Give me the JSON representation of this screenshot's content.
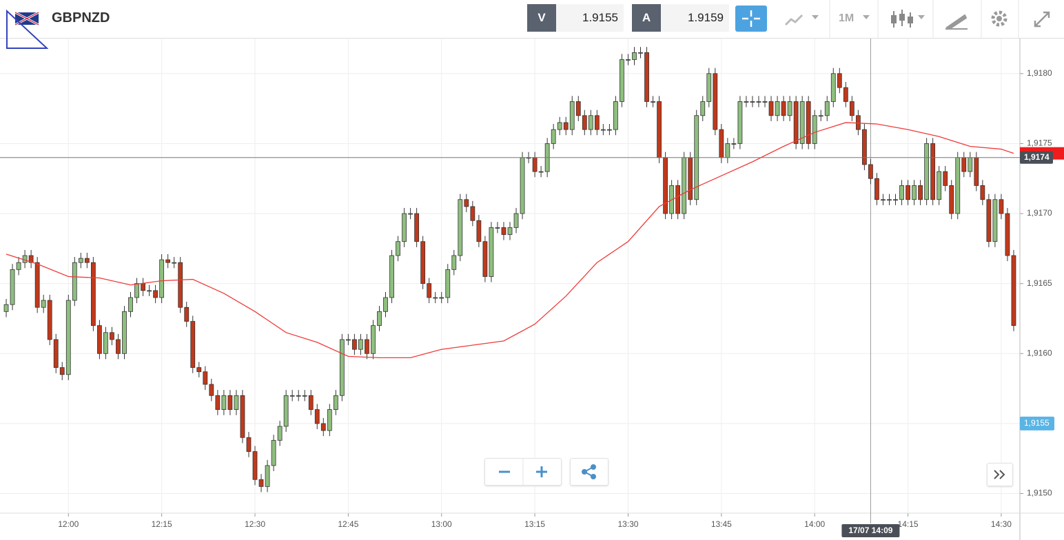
{
  "header": {
    "symbol": "GBPNZD",
    "sell_label": "V",
    "sell": 1.9155,
    "buy_label": "A",
    "buy": 1.9159,
    "timeframe": "1M"
  },
  "chart_data": {
    "type": "candlestick",
    "x": [
      "11:50",
      "11:51",
      "11:52",
      "11:53",
      "11:54",
      "11:55",
      "11:56",
      "11:57",
      "11:58",
      "11:59",
      "12:00",
      "12:01",
      "12:02",
      "12:03",
      "12:04",
      "12:05",
      "12:06",
      "12:07",
      "12:08",
      "12:09",
      "12:10",
      "12:11",
      "12:12",
      "12:13",
      "12:14",
      "12:15",
      "12:16",
      "12:17",
      "12:18",
      "12:19",
      "12:20",
      "12:21",
      "12:22",
      "12:23",
      "12:24",
      "12:25",
      "12:26",
      "12:27",
      "12:28",
      "12:29",
      "12:30",
      "12:31",
      "12:32",
      "12:33",
      "12:34",
      "12:35",
      "12:36",
      "12:37",
      "12:38",
      "12:39",
      "12:40",
      "12:41",
      "12:42",
      "12:43",
      "12:44",
      "12:45",
      "12:46",
      "12:47",
      "12:48",
      "12:49",
      "12:50",
      "12:51",
      "12:52",
      "12:53",
      "12:54",
      "12:55",
      "12:56",
      "12:57",
      "12:58",
      "12:59",
      "13:00",
      "13:01",
      "13:02",
      "13:03",
      "13:04",
      "13:05",
      "13:06",
      "13:07",
      "13:08",
      "13:09",
      "13:10",
      "13:11",
      "13:12",
      "13:13",
      "13:14",
      "13:15",
      "13:16",
      "13:17",
      "13:18",
      "13:19",
      "13:20",
      "13:21",
      "13:22",
      "13:23",
      "13:24",
      "13:25",
      "13:26",
      "13:27",
      "13:28",
      "13:29",
      "13:30",
      "13:31",
      "13:32",
      "13:33",
      "13:34",
      "13:35",
      "13:36",
      "13:37",
      "13:38",
      "13:39",
      "13:40",
      "13:41",
      "13:42",
      "13:43",
      "13:44",
      "13:45",
      "13:46",
      "13:47",
      "13:48",
      "13:49",
      "13:50",
      "13:51",
      "13:52",
      "13:53",
      "13:54",
      "13:55",
      "13:56",
      "13:57",
      "13:58",
      "13:59",
      "14:00",
      "14:01",
      "14:02",
      "14:03",
      "14:04",
      "14:05",
      "14:06",
      "14:07",
      "14:08",
      "14:09",
      "14:10",
      "14:11",
      "14:12",
      "14:13",
      "14:14",
      "14:15",
      "14:16",
      "14:17",
      "14:18",
      "14:19",
      "14:20",
      "14:21",
      "14:22",
      "14:23",
      "14:24",
      "14:25",
      "14:26",
      "14:27",
      "14:28",
      "14:29",
      "14:30",
      "14:31",
      "14:32"
    ],
    "ohlc": [
      [
        1.9163,
        1.91639,
        1.91626,
        1.91635
      ],
      [
        1.91635,
        1.91664,
        1.91631,
        1.9166
      ],
      [
        1.9166,
        1.91669,
        1.91656,
        1.91665
      ],
      [
        1.91665,
        1.91674,
        1.91661,
        1.9167
      ],
      [
        1.9167,
        1.91674,
        1.91661,
        1.91665
      ],
      [
        1.91665,
        1.91669,
        1.91629,
        1.91633
      ],
      [
        1.91633,
        1.91642,
        1.91629,
        1.91638
      ],
      [
        1.91638,
        1.91642,
        1.91606,
        1.9161
      ],
      [
        1.9161,
        1.91614,
        1.91586,
        1.9159
      ],
      [
        1.9159,
        1.91594,
        1.91581,
        1.91585
      ],
      [
        1.91585,
        1.91642,
        1.91581,
        1.91638
      ],
      [
        1.91638,
        1.91669,
        1.91634,
        1.91665
      ],
      [
        1.91665,
        1.91672,
        1.91661,
        1.91668
      ],
      [
        1.91668,
        1.91672,
        1.91661,
        1.91665
      ],
      [
        1.91665,
        1.91669,
        1.91616,
        1.9162
      ],
      [
        1.9162,
        1.91624,
        1.91596,
        1.916
      ],
      [
        1.916,
        1.91619,
        1.91596,
        1.91615
      ],
      [
        1.91615,
        1.91619,
        1.91606,
        1.9161
      ],
      [
        1.9161,
        1.91614,
        1.91596,
        1.916
      ],
      [
        1.916,
        1.91634,
        1.91596,
        1.9163
      ],
      [
        1.9163,
        1.91644,
        1.91626,
        1.9164
      ],
      [
        1.9164,
        1.91654,
        1.91636,
        1.9165
      ],
      [
        1.9165,
        1.91654,
        1.91641,
        1.91645
      ],
      [
        1.91645,
        1.91649,
        1.91641,
        1.91645
      ],
      [
        1.91645,
        1.91649,
        1.91636,
        1.9164
      ],
      [
        1.9164,
        1.91671,
        1.91636,
        1.91667
      ],
      [
        1.91667,
        1.91671,
        1.91661,
        1.91665
      ],
      [
        1.91665,
        1.91669,
        1.91661,
        1.91665
      ],
      [
        1.91665,
        1.91669,
        1.91629,
        1.91633
      ],
      [
        1.91633,
        1.91637,
        1.91619,
        1.91623
      ],
      [
        1.91623,
        1.91627,
        1.91586,
        1.9159
      ],
      [
        1.9159,
        1.91594,
        1.91583,
        1.91587
      ],
      [
        1.91587,
        1.91591,
        1.91574,
        1.91578
      ],
      [
        1.91578,
        1.91582,
        1.91566,
        1.9157
      ],
      [
        1.9157,
        1.91574,
        1.91556,
        1.9156
      ],
      [
        1.9156,
        1.91574,
        1.91556,
        1.9157
      ],
      [
        1.9157,
        1.91574,
        1.91556,
        1.9156
      ],
      [
        1.9156,
        1.91574,
        1.91556,
        1.9157
      ],
      [
        1.9157,
        1.91574,
        1.91536,
        1.9154
      ],
      [
        1.9154,
        1.91544,
        1.91526,
        1.9153
      ],
      [
        1.9153,
        1.91534,
        1.91506,
        1.9151
      ],
      [
        1.9151,
        1.91514,
        1.91501,
        1.91505
      ],
      [
        1.91505,
        1.91524,
        1.91501,
        1.9152
      ],
      [
        1.9152,
        1.91542,
        1.91516,
        1.91538
      ],
      [
        1.91538,
        1.91552,
        1.91534,
        1.91548
      ],
      [
        1.91548,
        1.91574,
        1.91544,
        1.9157
      ],
      [
        1.9157,
        1.91574,
        1.91566,
        1.9157
      ],
      [
        1.9157,
        1.91574,
        1.91566,
        1.9157
      ],
      [
        1.9157,
        1.91574,
        1.91566,
        1.9157
      ],
      [
        1.9157,
        1.91574,
        1.91556,
        1.9156
      ],
      [
        1.9156,
        1.91564,
        1.91546,
        1.9155
      ],
      [
        1.9155,
        1.91554,
        1.91541,
        1.91545
      ],
      [
        1.91545,
        1.91564,
        1.91541,
        1.9156
      ],
      [
        1.9156,
        1.91574,
        1.91556,
        1.9157
      ],
      [
        1.9157,
        1.91614,
        1.91566,
        1.9161
      ],
      [
        1.9161,
        1.91614,
        1.91606,
        1.9161
      ],
      [
        1.9161,
        1.91614,
        1.91599,
        1.91603
      ],
      [
        1.91603,
        1.91614,
        1.91599,
        1.9161
      ],
      [
        1.9161,
        1.91614,
        1.91596,
        1.916
      ],
      [
        1.916,
        1.91624,
        1.91596,
        1.9162
      ],
      [
        1.9162,
        1.91634,
        1.91616,
        1.9163
      ],
      [
        1.9163,
        1.91644,
        1.91626,
        1.9164
      ],
      [
        1.9164,
        1.91674,
        1.91636,
        1.9167
      ],
      [
        1.9167,
        1.91684,
        1.91666,
        1.9168
      ],
      [
        1.9168,
        1.91704,
        1.91676,
        1.917
      ],
      [
        1.917,
        1.91704,
        1.91696,
        1.917
      ],
      [
        1.917,
        1.91704,
        1.91676,
        1.9168
      ],
      [
        1.9168,
        1.91684,
        1.91646,
        1.9165
      ],
      [
        1.9165,
        1.91654,
        1.91636,
        1.9164
      ],
      [
        1.9164,
        1.91644,
        1.91636,
        1.9164
      ],
      [
        1.9164,
        1.91644,
        1.91636,
        1.9164
      ],
      [
        1.9164,
        1.91664,
        1.91636,
        1.9166
      ],
      [
        1.9166,
        1.91674,
        1.91656,
        1.9167
      ],
      [
        1.9167,
        1.91714,
        1.91666,
        1.9171
      ],
      [
        1.9171,
        1.91714,
        1.91701,
        1.91705
      ],
      [
        1.91705,
        1.91709,
        1.91691,
        1.91695
      ],
      [
        1.91695,
        1.91699,
        1.91676,
        1.9168
      ],
      [
        1.9168,
        1.91684,
        1.91651,
        1.91655
      ],
      [
        1.91655,
        1.91694,
        1.91651,
        1.9169
      ],
      [
        1.9169,
        1.91694,
        1.91686,
        1.9169
      ],
      [
        1.9169,
        1.91694,
        1.91681,
        1.91685
      ],
      [
        1.91685,
        1.91694,
        1.91681,
        1.9169
      ],
      [
        1.9169,
        1.91704,
        1.91686,
        1.917
      ],
      [
        1.917,
        1.91744,
        1.91696,
        1.9174
      ],
      [
        1.9174,
        1.91744,
        1.91736,
        1.9174
      ],
      [
        1.9174,
        1.91744,
        1.91726,
        1.9173
      ],
      [
        1.9173,
        1.91734,
        1.91726,
        1.9173
      ],
      [
        1.9173,
        1.91754,
        1.91726,
        1.9175
      ],
      [
        1.9175,
        1.91764,
        1.91746,
        1.9176
      ],
      [
        1.9176,
        1.91769,
        1.91756,
        1.91765
      ],
      [
        1.91765,
        1.91769,
        1.91756,
        1.9176
      ],
      [
        1.9176,
        1.91784,
        1.91756,
        1.9178
      ],
      [
        1.9178,
        1.91784,
        1.91766,
        1.9177
      ],
      [
        1.9177,
        1.91774,
        1.91756,
        1.9176
      ],
      [
        1.9176,
        1.91774,
        1.91756,
        1.9177
      ],
      [
        1.9177,
        1.91774,
        1.91756,
        1.9176
      ],
      [
        1.9176,
        1.91764,
        1.91756,
        1.9176
      ],
      [
        1.9176,
        1.91764,
        1.91756,
        1.9176
      ],
      [
        1.9176,
        1.91784,
        1.91756,
        1.9178
      ],
      [
        1.9178,
        1.91814,
        1.91776,
        1.9181
      ],
      [
        1.9181,
        1.91814,
        1.91806,
        1.9181
      ],
      [
        1.9181,
        1.91819,
        1.91806,
        1.91815
      ],
      [
        1.91815,
        1.91819,
        1.91811,
        1.91815
      ],
      [
        1.91815,
        1.91819,
        1.91776,
        1.9178
      ],
      [
        1.9178,
        1.91784,
        1.91776,
        1.9178
      ],
      [
        1.9178,
        1.91784,
        1.91736,
        1.9174
      ],
      [
        1.9174,
        1.91744,
        1.91696,
        1.917
      ],
      [
        1.917,
        1.91724,
        1.91696,
        1.9172
      ],
      [
        1.9172,
        1.91724,
        1.91696,
        1.917
      ],
      [
        1.917,
        1.91744,
        1.91696,
        1.9174
      ],
      [
        1.9174,
        1.91744,
        1.91706,
        1.9171
      ],
      [
        1.9171,
        1.91774,
        1.91706,
        1.9177
      ],
      [
        1.9177,
        1.91784,
        1.91766,
        1.9178
      ],
      [
        1.9178,
        1.91804,
        1.91776,
        1.918
      ],
      [
        1.918,
        1.91804,
        1.91756,
        1.9176
      ],
      [
        1.9176,
        1.91764,
        1.91736,
        1.9174
      ],
      [
        1.9174,
        1.91754,
        1.91736,
        1.9175
      ],
      [
        1.9175,
        1.91754,
        1.91746,
        1.9175
      ],
      [
        1.9175,
        1.91784,
        1.91746,
        1.9178
      ],
      [
        1.9178,
        1.91784,
        1.91776,
        1.9178
      ],
      [
        1.9178,
        1.91784,
        1.91776,
        1.9178
      ],
      [
        1.9178,
        1.91784,
        1.91776,
        1.9178
      ],
      [
        1.9178,
        1.91784,
        1.91776,
        1.9178
      ],
      [
        1.9178,
        1.91784,
        1.91766,
        1.9177
      ],
      [
        1.9177,
        1.91784,
        1.91766,
        1.9178
      ],
      [
        1.9178,
        1.91784,
        1.91766,
        1.9177
      ],
      [
        1.9177,
        1.91784,
        1.91766,
        1.9178
      ],
      [
        1.9178,
        1.91784,
        1.91746,
        1.9175
      ],
      [
        1.9175,
        1.91784,
        1.91746,
        1.9178
      ],
      [
        1.9178,
        1.91784,
        1.91746,
        1.9175
      ],
      [
        1.9175,
        1.91774,
        1.91746,
        1.9177
      ],
      [
        1.9177,
        1.91774,
        1.91766,
        1.9177
      ],
      [
        1.9177,
        1.91784,
        1.91766,
        1.9178
      ],
      [
        1.9178,
        1.91804,
        1.91776,
        1.918
      ],
      [
        1.918,
        1.91804,
        1.91786,
        1.9179
      ],
      [
        1.9179,
        1.91794,
        1.91776,
        1.9178
      ],
      [
        1.9178,
        1.91784,
        1.91766,
        1.9177
      ],
      [
        1.9177,
        1.91774,
        1.91756,
        1.9176
      ],
      [
        1.9176,
        1.91764,
        1.91731,
        1.91735
      ],
      [
        1.91735,
        1.91739,
        1.91721,
        1.91725
      ],
      [
        1.91725,
        1.91729,
        1.91706,
        1.9171
      ],
      [
        1.9171,
        1.91714,
        1.91706,
        1.9171
      ],
      [
        1.9171,
        1.91714,
        1.91706,
        1.9171
      ],
      [
        1.9171,
        1.91714,
        1.91706,
        1.9171
      ],
      [
        1.9171,
        1.91724,
        1.91706,
        1.9172
      ],
      [
        1.9172,
        1.91724,
        1.91706,
        1.9171
      ],
      [
        1.9171,
        1.91724,
        1.91706,
        1.9172
      ],
      [
        1.9172,
        1.91724,
        1.91706,
        1.9171
      ],
      [
        1.9171,
        1.91754,
        1.91706,
        1.9175
      ],
      [
        1.9175,
        1.91754,
        1.91706,
        1.9171
      ],
      [
        1.9171,
        1.91734,
        1.91706,
        1.9173
      ],
      [
        1.9173,
        1.91734,
        1.91716,
        1.9172
      ],
      [
        1.9172,
        1.91724,
        1.91696,
        1.917
      ],
      [
        1.917,
        1.91744,
        1.91696,
        1.9174
      ],
      [
        1.9174,
        1.91744,
        1.91726,
        1.9173
      ],
      [
        1.9173,
        1.91744,
        1.91726,
        1.9174
      ],
      [
        1.9174,
        1.91744,
        1.91716,
        1.9172
      ],
      [
        1.9172,
        1.91724,
        1.91706,
        1.9171
      ],
      [
        1.9171,
        1.91714,
        1.91676,
        1.9168
      ],
      [
        1.9168,
        1.91714,
        1.91676,
        1.9171
      ],
      [
        1.9171,
        1.91714,
        1.91696,
        1.917
      ],
      [
        1.917,
        1.91704,
        1.91666,
        1.9167
      ],
      [
        1.9167,
        1.91674,
        1.91616,
        1.9162
      ]
    ],
    "up_color": "#8fbf7f",
    "down_color": "#c0391b",
    "ma": {
      "color": "#f03a3a",
      "x": [
        "11:50",
        "11:55",
        "12:00",
        "12:05",
        "12:10",
        "12:15",
        "12:20",
        "12:25",
        "12:30",
        "12:35",
        "12:40",
        "12:45",
        "12:50",
        "12:55",
        "13:00",
        "13:05",
        "13:10",
        "13:15",
        "13:20",
        "13:25",
        "13:30",
        "13:35",
        "13:40",
        "13:45",
        "13:50",
        "13:55",
        "14:00",
        "14:05",
        "14:10",
        "14:15",
        "14:20",
        "14:25",
        "14:30",
        "14:32"
      ],
      "values": [
        1.91671,
        1.91664,
        1.91655,
        1.91654,
        1.91649,
        1.91652,
        1.91653,
        1.91643,
        1.9163,
        1.91615,
        1.91608,
        1.91598,
        1.91597,
        1.91597,
        1.91603,
        1.91606,
        1.91609,
        1.91621,
        1.91641,
        1.91665,
        1.9168,
        1.91705,
        1.91717,
        1.91727,
        1.91737,
        1.91748,
        1.91758,
        1.91765,
        1.91764,
        1.9176,
        1.91755,
        1.91748,
        1.91746,
        1.91743
      ]
    },
    "xlim": [
      "11:49",
      "14:33"
    ],
    "ylim": [
      1.91486,
      1.91825
    ],
    "yticks": [
      {
        "value": 1.915,
        "label": "1,9150"
      },
      {
        "value": 1.9155,
        "label": "1,9155"
      },
      {
        "value": 1.916,
        "label": "1,9160"
      },
      {
        "value": 1.9165,
        "label": "1,9165"
      },
      {
        "value": 1.917,
        "label": "1,9170"
      },
      {
        "value": 1.9175,
        "label": "1,9175"
      },
      {
        "value": 1.918,
        "label": "1,9180"
      }
    ],
    "xticks": [
      "12:00",
      "12:15",
      "12:30",
      "12:45",
      "13:00",
      "13:15",
      "13:30",
      "13:45",
      "14:00",
      "14:15",
      "14:30"
    ],
    "grid": true,
    "last_price": {
      "value": 1.9174,
      "label": "1,9174"
    },
    "bid": {
      "value": 1.9155,
      "label": "1,9155"
    },
    "crosshair": {
      "x": "14:09",
      "label": "17/07 14:09"
    }
  }
}
